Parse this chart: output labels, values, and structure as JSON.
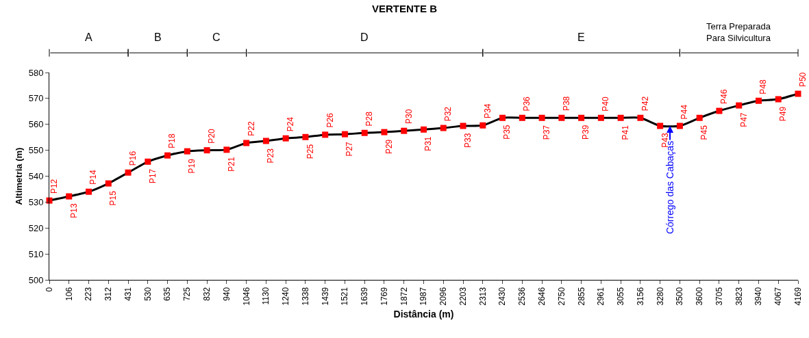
{
  "chart_data": {
    "type": "line",
    "title": "VERTENTE B",
    "xlabel": "Distância (m)",
    "ylabel": "Altimetria (m)",
    "categories": [
      "0",
      "106",
      "223",
      "312",
      "431",
      "530",
      "635",
      "725",
      "832",
      "940",
      "1046",
      "1130",
      "1240",
      "1338",
      "1439",
      "1521",
      "1639",
      "1769",
      "1872",
      "1987",
      "2096",
      "2203",
      "2313",
      "2430",
      "2536",
      "2646",
      "2750",
      "2855",
      "2961",
      "3055",
      "3156",
      "3280",
      "3500",
      "3600",
      "3705",
      "3823",
      "3940",
      "4067",
      "4169"
    ],
    "series": [
      {
        "color": "#000000",
        "marker": "none",
        "line_style": "solid",
        "values": [
          530.6,
          532.2,
          534,
          537.2,
          541.4,
          545.6,
          548,
          549.6,
          550,
          550.2,
          552.8,
          553.6,
          554.6,
          555.1,
          556,
          556.2,
          556.7,
          557,
          557.5,
          558,
          558.6,
          559.4,
          559.6,
          562.5,
          562.5,
          562.5,
          562.5,
          562.5,
          562.5,
          562.5,
          562.5,
          559.4,
          559.4,
          562.5,
          565.2,
          567.3,
          569.1,
          569.7,
          571.8
        ]
      },
      {
        "type": "scatter",
        "color": "#ff0000",
        "marker": "square",
        "values": [
          530.6,
          532.2,
          534,
          537.2,
          541.4,
          545.6,
          548,
          549.6,
          550,
          550.2,
          552.8,
          553.6,
          554.6,
          555.1,
          556,
          556.2,
          556.7,
          557,
          557.5,
          558,
          558.6,
          559.4,
          559.6,
          562.5,
          562.5,
          562.5,
          562.5,
          562.5,
          562.5,
          562.5,
          562.5,
          559.4,
          559.4,
          562.5,
          565.2,
          567.3,
          569.1,
          569.7,
          571.8
        ]
      }
    ],
    "ylim": [
      500,
      580
    ],
    "yticks": [
      500,
      510,
      520,
      530,
      540,
      550,
      560,
      570,
      580
    ],
    "legend": false,
    "annotations": [
      "A",
      "B",
      "C",
      "D",
      "E",
      "Terra Preparada\nPara Silvicultura",
      {
        "text": "P12",
        "x": "0",
        "y": 530.6
      },
      {
        "text": "P13",
        "x": "106",
        "y": 532.2
      },
      {
        "text": "P14",
        "x": "223",
        "y": 534
      },
      {
        "text": "P15",
        "x": "312",
        "y": 537.2
      },
      {
        "text": "P16",
        "x": "431",
        "y": 541.4
      },
      {
        "text": "P17",
        "x": "530",
        "y": 545.6
      },
      {
        "text": "P18",
        "x": "635",
        "y": 548
      },
      {
        "text": "P19",
        "x": "725",
        "y": 549.6
      },
      {
        "text": "P20",
        "x": "832",
        "y": 550
      },
      {
        "text": "P21",
        "x": "940",
        "y": 550.2
      },
      {
        "text": "P22",
        "x": "1046",
        "y": 552.8
      },
      {
        "text": "P23",
        "x": "1130",
        "y": 553.6
      },
      {
        "text": "P24",
        "x": "1240",
        "y": 554.6
      },
      {
        "text": "P25",
        "x": "1338",
        "y": 555.1
      },
      {
        "text": "P26",
        "x": "1439",
        "y": 556
      },
      {
        "text": "P27",
        "x": "1521",
        "y": 556.2
      },
      {
        "text": "P28",
        "x": "1639",
        "y": 556.7
      },
      {
        "text": "P29",
        "x": "1769",
        "y": 557
      },
      {
        "text": "P30",
        "x": "1872",
        "y": 557.5
      },
      {
        "text": "P31",
        "x": "1987",
        "y": 558
      },
      {
        "text": "P32",
        "x": "2096",
        "y": 558.6
      },
      {
        "text": "P33",
        "x": "2203",
        "y": 559.4
      },
      {
        "text": "P34",
        "x": "2313",
        "y": 559.6
      },
      {
        "text": "P35",
        "x": "2430",
        "y": 562.5
      },
      {
        "text": "P36",
        "x": "2536",
        "y": 562.5
      },
      {
        "text": "P37",
        "x": "2646",
        "y": 562.5
      },
      {
        "text": "P38",
        "x": "2750",
        "y": 562.5
      },
      {
        "text": "P39",
        "x": "2855",
        "y": 562.5
      },
      {
        "text": "P40",
        "x": "2961",
        "y": 562.5
      },
      {
        "text": "P41",
        "x": "3055",
        "y": 562.5
      },
      {
        "text": "P42",
        "x": "3156",
        "y": 562.5
      },
      {
        "text": "P43",
        "x": "3280",
        "y": 559.4
      },
      {
        "text": "P44",
        "x": "3500",
        "y": 559.4
      },
      {
        "text": "P45",
        "x": "3600",
        "y": 562.5
      },
      {
        "text": "P46",
        "x": "3705",
        "y": 565.2
      },
      {
        "text": "P47",
        "x": "3823",
        "y": 567.3
      },
      {
        "text": "P48",
        "x": "3940",
        "y": 569.1
      },
      {
        "text": "P49",
        "x": "4067",
        "y": 569.7
      },
      {
        "text": "P50",
        "x": "4169",
        "y": 571.8
      },
      {
        "text": "Córrego das Cabaças",
        "y": 559.4
      }
    ]
  }
}
